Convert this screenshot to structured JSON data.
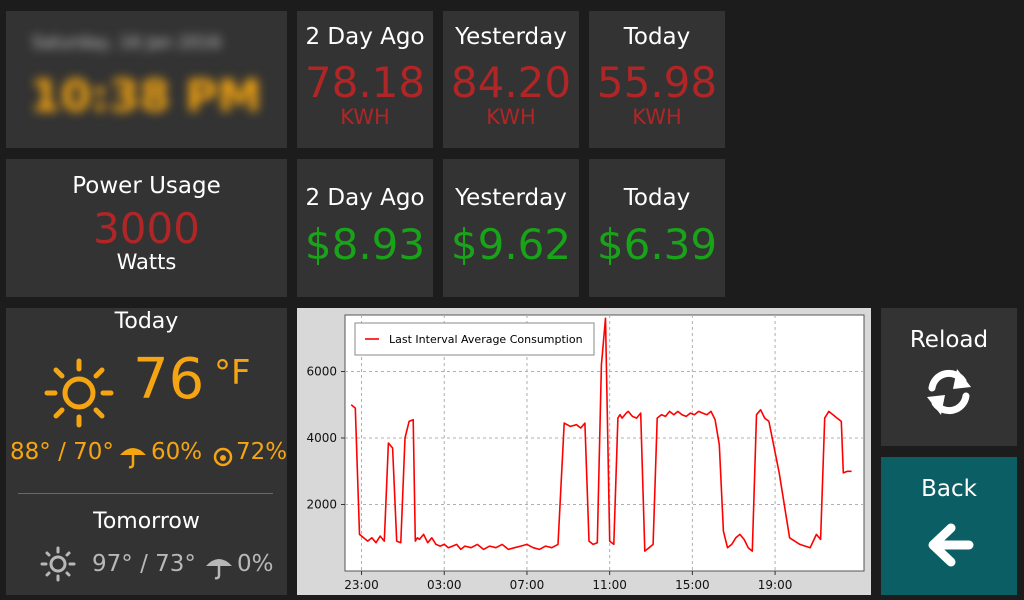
{
  "clock": {
    "date": "Saturday, 16 Jan 2016",
    "time": "10:38 PM"
  },
  "energy": {
    "two_day_ago": {
      "label": "2 Day Ago",
      "value": "78.18",
      "unit": "KWH"
    },
    "yesterday": {
      "label": "Yesterday",
      "value": "84.20",
      "unit": "KWH"
    },
    "today": {
      "label": "Today",
      "value": "55.98",
      "unit": "KWH"
    }
  },
  "power": {
    "label": "Power Usage",
    "value": "3000",
    "unit": "Watts"
  },
  "cost": {
    "two_day_ago": {
      "label": "2 Day Ago",
      "value": "$8.93"
    },
    "yesterday": {
      "label": "Yesterday",
      "value": "$9.62"
    },
    "today": {
      "label": "Today",
      "value": "$6.39"
    }
  },
  "weather": {
    "today": {
      "label": "Today",
      "icon": "sun-icon",
      "temp": "76",
      "temp_unit": "°F",
      "hilo": "88° / 70°",
      "rain_icon": "umbrella-icon",
      "rain": "60%",
      "humidity_icon": "drop-icon",
      "humidity": "72%"
    },
    "tomorrow": {
      "label": "Tomorrow",
      "icon": "sun-icon",
      "hilo": "97° / 73°",
      "rain_icon": "umbrella-icon",
      "rain": "0%"
    }
  },
  "buttons": {
    "reload": {
      "label": "Reload",
      "icon": "refresh-icon"
    },
    "back": {
      "label": "Back",
      "icon": "arrow-left-icon"
    }
  },
  "colors": {
    "background": "#1c1c1c",
    "tile": "#333333",
    "value_red": "#b02626",
    "value_green": "#19a319",
    "weather_orange": "#f5a511",
    "back_button": "#0b5e63",
    "chart_line": "#ff0000"
  },
  "chart_data": {
    "type": "line",
    "legend_position": "top-left",
    "grid": true,
    "ylim": [
      0,
      7700
    ],
    "yticks": [
      "2000",
      "4000",
      "6000"
    ],
    "ytick_values": [
      2000,
      4000,
      6000
    ],
    "xticks": [
      "23:00",
      "03:00",
      "07:00",
      "11:00",
      "15:00",
      "19:00"
    ],
    "xtick_values": [
      23,
      27,
      31,
      35,
      39,
      43
    ],
    "xlim": [
      22.2,
      47.3
    ],
    "series": [
      {
        "name": "Last Interval Average Consumption",
        "x": [
          22.5,
          22.7,
          22.9,
          23.3,
          23.5,
          23.7,
          23.9,
          24.1,
          24.3,
          24.5,
          24.7,
          24.9,
          25.1,
          25.3,
          25.5,
          25.6,
          25.7,
          25.8,
          26.0,
          26.2,
          26.4,
          26.5,
          26.6,
          26.8,
          27.0,
          27.2,
          27.4,
          27.6,
          27.8,
          28.0,
          28.3,
          28.6,
          28.9,
          29.2,
          29.5,
          29.8,
          30.1,
          30.4,
          30.7,
          31.0,
          31.3,
          31.6,
          31.9,
          32.2,
          32.5,
          32.8,
          33.1,
          33.4,
          33.6,
          33.8,
          34.0,
          34.2,
          34.4,
          34.6,
          34.8,
          35.0,
          35.2,
          35.4,
          35.5,
          35.6,
          35.8,
          35.9,
          36.1,
          36.3,
          36.5,
          36.7,
          36.9,
          37.1,
          37.3,
          37.5,
          37.7,
          37.9,
          38.1,
          38.3,
          38.5,
          38.7,
          38.9,
          39.1,
          39.3,
          39.5,
          39.7,
          39.9,
          40.1,
          40.3,
          40.5,
          40.7,
          40.9,
          41.1,
          41.3,
          41.5,
          41.7,
          41.9,
          42.1,
          42.3,
          42.5,
          42.7,
          43.2,
          43.7,
          44.2,
          44.7,
          45.0,
          45.2,
          45.4,
          45.6,
          45.8,
          46.0,
          46.2,
          46.3,
          46.5,
          46.7
        ],
        "y": [
          5000,
          4900,
          1100,
          900,
          1000,
          850,
          1050,
          900,
          3850,
          3700,
          900,
          850,
          4000,
          4500,
          4550,
          900,
          1000,
          950,
          1100,
          850,
          1000,
          900,
          800,
          750,
          800,
          700,
          750,
          800,
          650,
          750,
          700,
          800,
          650,
          750,
          700,
          800,
          650,
          700,
          750,
          800,
          700,
          650,
          750,
          700,
          800,
          4450,
          4350,
          4400,
          4300,
          4450,
          900,
          800,
          850,
          6200,
          7600,
          900,
          800,
          4600,
          4700,
          4600,
          4750,
          4800,
          4650,
          4600,
          4750,
          600,
          700,
          800,
          4600,
          4700,
          4650,
          4800,
          4700,
          4800,
          4700,
          4650,
          4750,
          4700,
          4800,
          4750,
          4700,
          4800,
          4550,
          3800,
          1200,
          700,
          800,
          1000,
          1100,
          950,
          700,
          600,
          4700,
          4850,
          4600,
          4500,
          2950,
          1000,
          800,
          700,
          1100,
          950,
          4600,
          4800,
          4700,
          4600,
          4500,
          2950,
          3000,
          3000
        ],
        "color": "#ff0000"
      }
    ]
  }
}
